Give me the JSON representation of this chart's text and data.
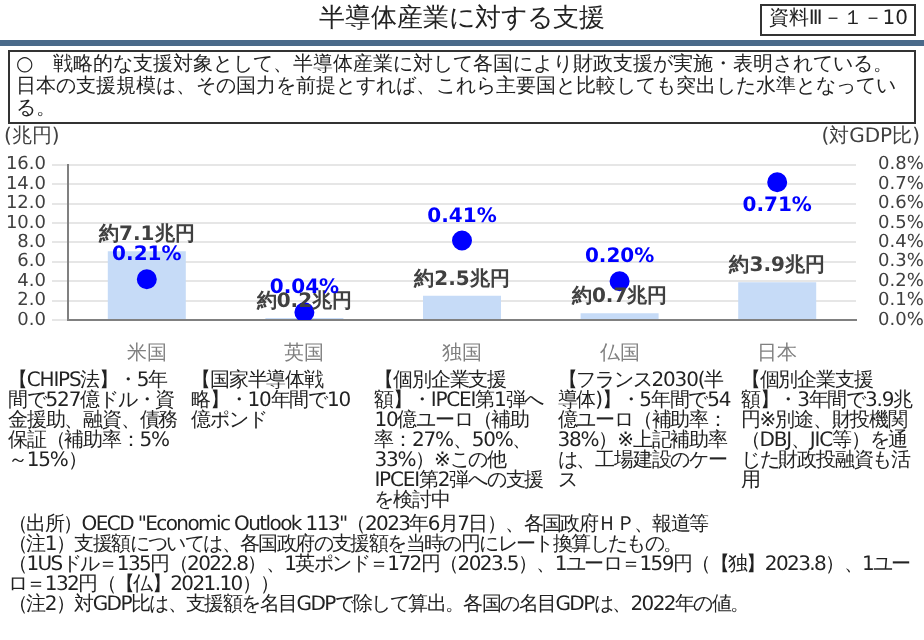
{
  "chart_data": {
    "type": "bar",
    "title": "半導体産業に対する支援",
    "subtitle": "○　戦略的な支援対象として、半導体産業に対して各国により財政支援が実施・表明されている。日本の支援規模は、その国力を前提とすれば、これら主要国と比較しても突出した水準となっている。",
    "ylabel": "(兆円)",
    "y2label": "(対GDP比)",
    "categories": [
      "米国",
      "英国",
      "独国",
      "仏国",
      "日本"
    ],
    "series": [
      {
        "type": "bar",
        "color": "#c6dbf7",
        "values": [
          7.1,
          0.2,
          2.5,
          0.7,
          3.9
        ],
        "value_labels": [
          "約7.1兆円",
          "約0.2兆円",
          "約2.5兆円",
          "約0.7兆円",
          "約3.9兆円"
        ]
      },
      {
        "type": "scatter",
        "axis": "y2",
        "color": "#0000ff",
        "values": [
          0.21,
          0.04,
          0.41,
          0.2,
          0.71
        ],
        "value_labels": [
          "0.21%",
          "0.04%",
          "0.41%",
          "0.20%",
          "0.71%"
        ]
      }
    ],
    "ylim": [
      0,
      16
    ],
    "yticks": [
      {
        "value": 0,
        "label": "0.0"
      },
      {
        "value": 2,
        "label": "2.0"
      },
      {
        "value": 4,
        "label": "4.0"
      },
      {
        "value": 6,
        "label": "6.0"
      },
      {
        "value": 8,
        "label": "8.0"
      },
      {
        "value": 10,
        "label": "10.0"
      },
      {
        "value": 12,
        "label": "12.0"
      },
      {
        "value": 14,
        "label": "14.0"
      },
      {
        "value": 16,
        "label": "16.0"
      }
    ],
    "y2lim": [
      0,
      0.8
    ],
    "y2ticks": [
      {
        "value": 0,
        "label": "0.0%"
      },
      {
        "value": 0.1,
        "label": "0.1%"
      },
      {
        "value": 0.2,
        "label": "0.2%"
      },
      {
        "value": 0.3,
        "label": "0.3%"
      },
      {
        "value": 0.4,
        "label": "0.4%"
      },
      {
        "value": 0.5,
        "label": "0.5%"
      },
      {
        "value": 0.6,
        "label": "0.6%"
      },
      {
        "value": 0.7,
        "label": "0.7%"
      },
      {
        "value": 0.8,
        "label": "0.8%"
      }
    ],
    "grid": "y",
    "marker": "circle",
    "annotations": [
      "資料Ⅲ－１－10",
      "【CHIPS法】・5年間で527億ドル・資金援助、融資、債務保証（補助率：5%～15%）",
      "【国家半導体戦略】・10年間で10億ポンド",
      "【個別企業支援額】・IPCEI第1弾へ10億ユーロ（補助率：27%、50%、33%）※この他IPCEI第2弾への支援を検討中",
      "【フランス2030(半導体)】・5年間で54億ユーロ（補助率：38%）※上記補助率は、工場建設のケース",
      "【個別企業支援額】・3年間で3.9兆円※別途、財投機関（DBJ、JIC等）を通じた財政投融資も活用",
      "（出所）OECD \"Economic Outlook 113\"（2023年6月7日）、各国政府ＨＰ、報道等",
      "（注1）支援額については、各国政府の支援額を当時の円にレート換算したもの。",
      "（1USドル＝135円（2022.8）、1英ポンド＝172円（2023.5）、1ユーロ＝159円（【独】2023.8）、1ユーロ＝132円（【仏】2021.10））",
      "（注2）対GDP比は、支援額を名目GDPで除して算出。各国の名目GDPは、2022年の値。"
    ]
  }
}
